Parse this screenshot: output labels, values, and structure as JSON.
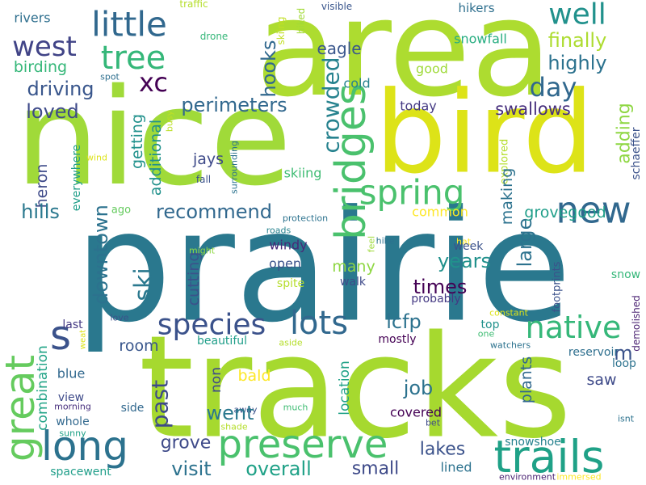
{
  "words": [
    {
      "text": "prairie",
      "color": "#2a788e"
    },
    {
      "text": "tracks",
      "color": "#a6d92f"
    },
    {
      "text": "nice",
      "color": "#a0da39"
    },
    {
      "text": "area",
      "color": "#addc30"
    },
    {
      "text": "bird",
      "color": "#dde318"
    },
    {
      "text": "bridges",
      "color": "#4ac16d"
    },
    {
      "text": "preserve",
      "color": "#4ac16d"
    },
    {
      "text": "trails",
      "color": "#1fa187"
    },
    {
      "text": "long",
      "color": "#2c728e"
    },
    {
      "text": "great",
      "color": "#65cb5e"
    },
    {
      "text": "spring",
      "color": "#4ac16d"
    },
    {
      "text": "new",
      "color": "#31688e"
    },
    {
      "text": "native",
      "color": "#35b779"
    },
    {
      "text": "species",
      "color": "#3b528b"
    },
    {
      "text": "lots",
      "color": "#31688e"
    },
    {
      "text": "little",
      "color": "#31688e"
    },
    {
      "text": "tree",
      "color": "#35b779"
    },
    {
      "text": "west",
      "color": "#414487"
    },
    {
      "text": "well",
      "color": "#21918c"
    },
    {
      "text": "s",
      "color": "#3b528b"
    },
    {
      "text": "xc",
      "color": "#440154"
    },
    {
      "text": "day",
      "color": "#31688e"
    },
    {
      "text": "finally",
      "color": "#addc30"
    },
    {
      "text": "highly",
      "color": "#2c728e"
    },
    {
      "text": "hooks",
      "color": "#31688e"
    },
    {
      "text": "eagle",
      "color": "#39568c"
    },
    {
      "text": "driving",
      "color": "#39568c"
    },
    {
      "text": "birding",
      "color": "#35b779"
    },
    {
      "text": "loved",
      "color": "#3e4a89"
    },
    {
      "text": "perimeters",
      "color": "#31688e"
    },
    {
      "text": "crowded",
      "color": "#26828e"
    },
    {
      "text": "swallows",
      "color": "#472f7d"
    },
    {
      "text": "adding",
      "color": "#8fd744"
    },
    {
      "text": "today",
      "color": "#443983"
    },
    {
      "text": "cold",
      "color": "#26828e"
    },
    {
      "text": "good",
      "color": "#9fda3a"
    },
    {
      "text": "hikers",
      "color": "#2e6f8e"
    },
    {
      "text": "snowfall",
      "color": "#27ad81"
    },
    {
      "text": "rivers",
      "color": "#2e6f8e"
    },
    {
      "text": "traffic",
      "color": "#b5de2b"
    },
    {
      "text": "drone",
      "color": "#35b779"
    },
    {
      "text": "visible",
      "color": "#39558c"
    },
    {
      "text": "skiing",
      "color": "#c2df23"
    },
    {
      "text": "hiked",
      "color": "#a2da37"
    },
    {
      "text": "spot",
      "color": "#2e6f8e"
    },
    {
      "text": "getting",
      "color": "#21918c"
    },
    {
      "text": "additional",
      "color": "#21918c"
    },
    {
      "text": "busy",
      "color": "#bddf26"
    },
    {
      "text": "jays",
      "color": "#3e4a89"
    },
    {
      "text": "heron",
      "color": "#3e4a89"
    },
    {
      "text": "everywhere",
      "color": "#1f9e89"
    },
    {
      "text": "wind",
      "color": "#dde318"
    },
    {
      "text": "fall",
      "color": "#3b528b"
    },
    {
      "text": "surrounding",
      "color": "#2c728e"
    },
    {
      "text": "skiing",
      "color": "#3fbc73"
    },
    {
      "text": "explored",
      "color": "#b5de2b"
    },
    {
      "text": "making",
      "color": "#2c728e"
    },
    {
      "text": "schaeffer",
      "color": "#3b528b"
    },
    {
      "text": "hills",
      "color": "#2a788e"
    },
    {
      "text": "recommend",
      "color": "#31688e"
    },
    {
      "text": "common",
      "color": "#fde725"
    },
    {
      "text": "grovegood",
      "color": "#1f9e89"
    },
    {
      "text": "ago",
      "color": "#65cb5e"
    },
    {
      "text": "protection",
      "color": "#2c728e"
    },
    {
      "text": "downtown",
      "color": "#2c728e"
    },
    {
      "text": "ski",
      "color": "#2a788e"
    },
    {
      "text": "roads",
      "color": "#26828e"
    },
    {
      "text": "windy",
      "color": "#482878"
    },
    {
      "text": "feel",
      "color": "#9fda3a"
    },
    {
      "text": "hike",
      "color": "#2c728e"
    },
    {
      "text": "hat",
      "color": "#fde725"
    },
    {
      "text": "large",
      "color": "#2c728e"
    },
    {
      "text": "week",
      "color": "#3b528b"
    },
    {
      "text": "might",
      "color": "#8fd744"
    },
    {
      "text": "open",
      "color": "#3b528b"
    },
    {
      "text": "many",
      "color": "#8fd744"
    },
    {
      "text": "years",
      "color": "#21918c"
    },
    {
      "text": "cutting",
      "color": "#3b528b"
    },
    {
      "text": "snow",
      "color": "#35b779"
    },
    {
      "text": "spite",
      "color": "#b5de2b"
    },
    {
      "text": "walk",
      "color": "#3e4a89"
    },
    {
      "text": "times",
      "color": "#440154"
    },
    {
      "text": "demolished",
      "color": "#481f70"
    },
    {
      "text": "footprints",
      "color": "#3b528b"
    },
    {
      "text": "probably",
      "color": "#443983"
    },
    {
      "text": "constant",
      "color": "#dde318"
    },
    {
      "text": "lcfp",
      "color": "#2c728e"
    },
    {
      "text": "love",
      "color": "#3b528b"
    },
    {
      "text": "last",
      "color": "#443983"
    },
    {
      "text": "mostly",
      "color": "#440154"
    },
    {
      "text": "top",
      "color": "#21918c"
    },
    {
      "text": "one",
      "color": "#3fbc73"
    },
    {
      "text": "m",
      "color": "#3b528b"
    },
    {
      "text": "beautiful",
      "color": "#1f9e89"
    },
    {
      "text": "aside",
      "color": "#b5de2b"
    },
    {
      "text": "weat",
      "color": "#dde318"
    },
    {
      "text": "watchers",
      "color": "#2c728e"
    },
    {
      "text": "room",
      "color": "#39568c"
    },
    {
      "text": "location",
      "color": "#1fa187"
    },
    {
      "text": "combination",
      "color": "#20a386"
    },
    {
      "text": "blue",
      "color": "#31688e"
    },
    {
      "text": "bald",
      "color": "#fde725"
    },
    {
      "text": "non",
      "color": "#3e4a89"
    },
    {
      "text": "plants",
      "color": "#31688e"
    },
    {
      "text": "reservoir",
      "color": "#2e6f8e"
    },
    {
      "text": "loop",
      "color": "#2c728e"
    },
    {
      "text": "job",
      "color": "#2c728e"
    },
    {
      "text": "view",
      "color": "#3e4a89"
    },
    {
      "text": "saw",
      "color": "#3e4a89"
    },
    {
      "text": "morning",
      "color": "#472f7d"
    },
    {
      "text": "past",
      "color": "#3e4a89"
    },
    {
      "text": "side",
      "color": "#31688e"
    },
    {
      "text": "away",
      "color": "#3b528b"
    },
    {
      "text": "much",
      "color": "#3fbc73"
    },
    {
      "text": "covered",
      "color": "#440154"
    },
    {
      "text": "whole",
      "color": "#31688e"
    },
    {
      "text": "went",
      "color": "#2a788e"
    },
    {
      "text": "sunny",
      "color": "#1fa187"
    },
    {
      "text": "shade",
      "color": "#b5de2b"
    },
    {
      "text": "bet",
      "color": "#3e4a89"
    },
    {
      "text": "isnt",
      "color": "#2c728e"
    },
    {
      "text": "grove",
      "color": "#3e4a89"
    },
    {
      "text": "lakes",
      "color": "#3b528b"
    },
    {
      "text": "snowshoe",
      "color": "#26828e"
    },
    {
      "text": "visit",
      "color": "#2c728e"
    },
    {
      "text": "overall",
      "color": "#1fa187"
    },
    {
      "text": "small",
      "color": "#3e4a89"
    },
    {
      "text": "lined",
      "color": "#2c728e"
    },
    {
      "text": "spacewent",
      "color": "#1f9e89"
    },
    {
      "text": "environment",
      "color": "#481f70"
    },
    {
      "text": "immersed",
      "color": "#fde725"
    }
  ]
}
